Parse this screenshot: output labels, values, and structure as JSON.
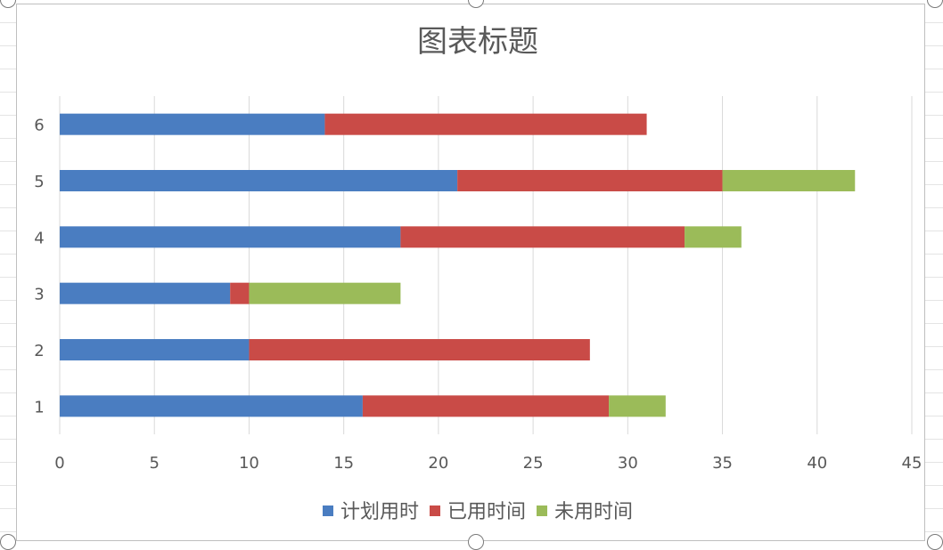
{
  "chart_data": {
    "type": "bar",
    "orientation": "horizontal",
    "stacked": true,
    "title": "图表标题",
    "categories": [
      "1",
      "2",
      "3",
      "4",
      "5",
      "6"
    ],
    "series": [
      {
        "name": "计划用时",
        "color": "#4a7dc1",
        "values": [
          16,
          10,
          9,
          18,
          21,
          14
        ]
      },
      {
        "name": "已用时间",
        "color": "#c94b47",
        "values": [
          13,
          18,
          1,
          15,
          14,
          17
        ]
      },
      {
        "name": "未用时间",
        "color": "#9bbb59",
        "values": [
          3,
          0,
          8,
          3,
          7,
          0
        ]
      }
    ],
    "xlim": [
      0,
      45
    ],
    "xticks": [
      0,
      5,
      10,
      15,
      20,
      25,
      30,
      35,
      40,
      45
    ],
    "grid": "vertical",
    "legend_position": "bottom"
  }
}
